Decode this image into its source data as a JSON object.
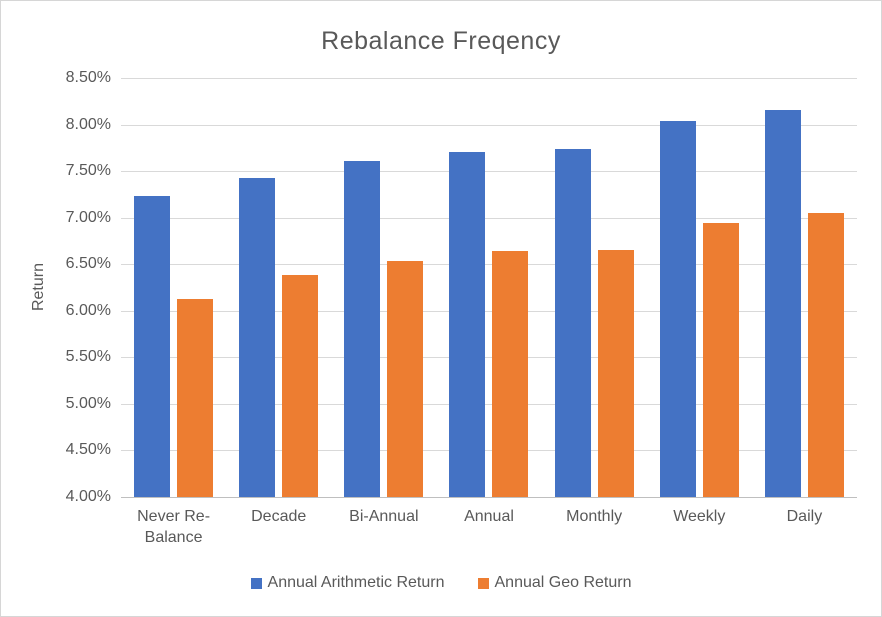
{
  "chart_data": {
    "type": "bar",
    "title": "Rebalance Freqency",
    "ylabel": "Return",
    "xlabel": "",
    "value_unit": "percent",
    "categories": [
      "Never Re-Balance",
      "Decade",
      "Bi-Annual",
      "Annual",
      "Monthly",
      "Weekly",
      "Daily"
    ],
    "series": [
      {
        "name": "Annual Arithmetic Return",
        "color": "#4472C4",
        "values": [
          7.23,
          7.43,
          7.61,
          7.71,
          7.74,
          8.04,
          8.16
        ]
      },
      {
        "name": "Annual Geo Return",
        "color": "#ED7D31",
        "values": [
          6.13,
          6.38,
          6.54,
          6.64,
          6.65,
          6.94,
          7.05
        ]
      }
    ],
    "ylim": [
      4.0,
      8.5
    ],
    "y_tick_step": 0.5,
    "y_tick_labels_top_to_bottom": [
      "8.50%",
      "8.00%",
      "7.50%",
      "7.00%",
      "6.50%",
      "6.00%",
      "5.50%",
      "5.00%",
      "4.50%",
      "4.00%"
    ],
    "grid": true,
    "legend_position": "bottom",
    "style": {
      "text_color": "#595959",
      "gridline_color": "#D9D9D9",
      "axis_line_color": "#BFBFBF",
      "frame_border_color": "#D6D6D6",
      "background_color": "#FFFFFF"
    }
  }
}
